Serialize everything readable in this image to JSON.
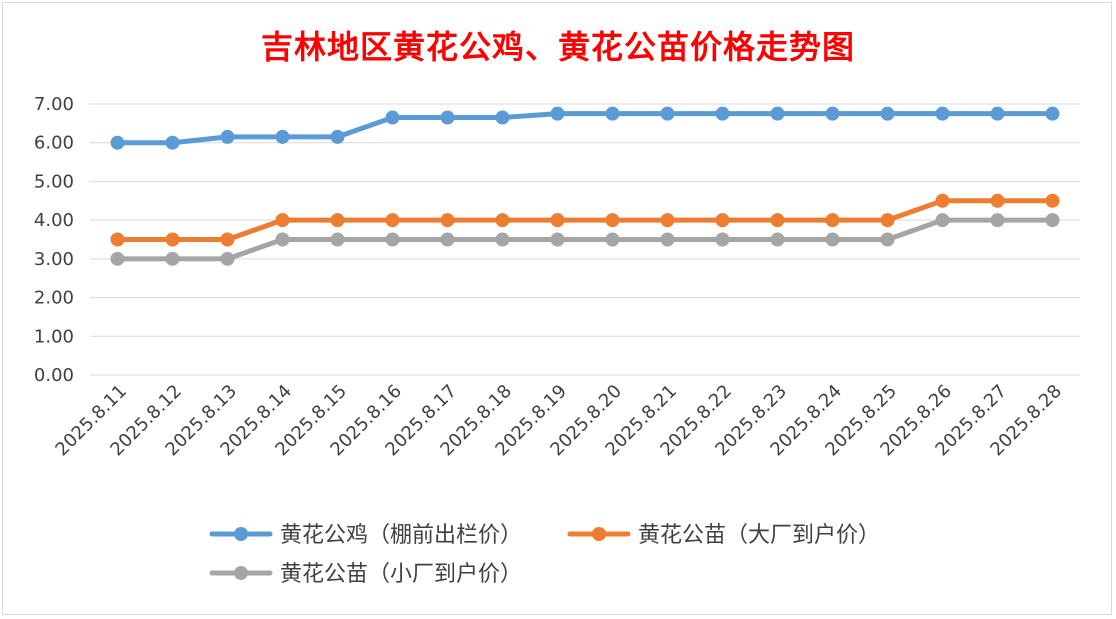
{
  "chart_data": {
    "type": "line",
    "title": "吉林地区黄花公鸡、黄花公苗价格走势图",
    "xlabel": "",
    "ylabel": "",
    "categories": [
      "2025.8.11",
      "2025.8.12",
      "2025.8.13",
      "2025.8.14",
      "2025.8.15",
      "2025.8.16",
      "2025.8.17",
      "2025.8.18",
      "2025.8.19",
      "2025.8.20",
      "2025.8.21",
      "2025.8.22",
      "2025.8.23",
      "2025.8.24",
      "2025.8.25",
      "2025.8.26",
      "2025.8.27",
      "2025.8.28"
    ],
    "ylim": [
      0,
      7
    ],
    "yticks": [
      "0.00",
      "1.00",
      "2.00",
      "3.00",
      "4.00",
      "5.00",
      "6.00",
      "7.00"
    ],
    "grid": true,
    "legend_position": "bottom",
    "series": [
      {
        "name": "黄花公鸡（棚前出栏价）",
        "color": "#5b9bd5",
        "values": [
          6.0,
          6.0,
          6.15,
          6.15,
          6.15,
          6.65,
          6.65,
          6.65,
          6.75,
          6.75,
          6.75,
          6.75,
          6.75,
          6.75,
          6.75,
          6.75,
          6.75,
          6.75
        ]
      },
      {
        "name": "黄花公苗（大厂到户价）",
        "color": "#ed7d31",
        "values": [
          3.5,
          3.5,
          3.5,
          4.0,
          4.0,
          4.0,
          4.0,
          4.0,
          4.0,
          4.0,
          4.0,
          4.0,
          4.0,
          4.0,
          4.0,
          4.5,
          4.5,
          4.5
        ]
      },
      {
        "name": "黄花公苗（小厂到户价）",
        "color": "#a5a5a5",
        "values": [
          3.0,
          3.0,
          3.0,
          3.5,
          3.5,
          3.5,
          3.5,
          3.5,
          3.5,
          3.5,
          3.5,
          3.5,
          3.5,
          3.5,
          3.5,
          4.0,
          4.0,
          4.0
        ]
      }
    ]
  }
}
